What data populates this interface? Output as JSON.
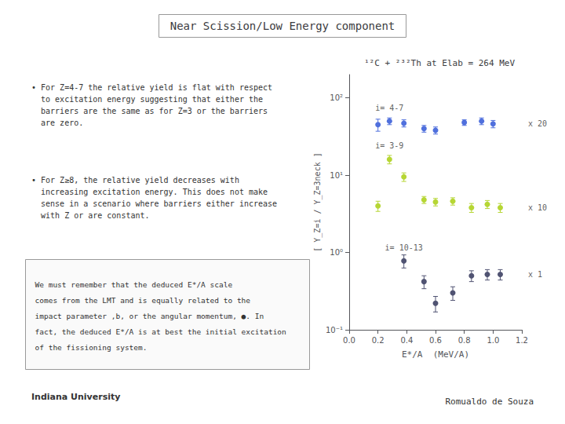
{
  "chart_data": {
    "type": "scatter",
    "title": "Near Scission/Low Energy component",
    "subtitle": "¹²C + ²³²Th at Elab = 264 MeV",
    "xlabel": "E*/A  (MeV/A)",
    "ylabel": "[ Y_Z=i / Y_Z=3neck ]",
    "log": "y",
    "grid": false,
    "marker": "circle",
    "xlim": [
      0.0,
      1.2
    ],
    "xticks": [
      {
        "value": 0,
        "label": "0.0"
      },
      0.2,
      0.4,
      0.6,
      0.8,
      {
        "value": 1,
        "label": "1.0"
      },
      1.2
    ],
    "ylim": [
      0.1,
      200
    ],
    "yticks": [
      {
        "value": 0.1,
        "label": "10⁻¹"
      },
      {
        "value": 1,
        "label": "10⁰"
      },
      {
        "value": 10,
        "label": "10¹"
      },
      {
        "value": 100,
        "label": "10²"
      }
    ],
    "series": [
      {
        "name": "i= 4-7",
        "annotation": "x 20",
        "x": [
          0.2,
          0.28,
          0.38,
          0.52,
          0.6,
          0.8,
          0.92,
          1.0
        ],
        "values": [
          45,
          50,
          47,
          40,
          38,
          48,
          50,
          46
        ],
        "yerr": [
          8,
          5,
          5,
          4,
          4,
          4,
          5,
          5
        ]
      },
      {
        "name": "i= 3-9",
        "annotation": "x 10",
        "x": [
          0.2,
          0.28,
          0.38,
          0.52,
          0.6,
          0.72,
          0.85,
          0.96,
          1.05
        ],
        "values": [
          4.0,
          16.0,
          9.5,
          4.8,
          4.5,
          4.6,
          3.8,
          4.2,
          3.8
        ],
        "yerr": [
          0.6,
          2.0,
          1.2,
          0.5,
          0.5,
          0.5,
          0.5,
          0.5,
          0.5
        ]
      },
      {
        "name": "i= 10-13",
        "annotation": "x 1",
        "x": [
          0.38,
          0.52,
          0.6,
          0.72,
          0.85,
          0.96,
          1.05
        ],
        "values": [
          0.78,
          0.42,
          0.22,
          0.3,
          0.5,
          0.52,
          0.52
        ],
        "yerr": [
          0.15,
          0.08,
          0.05,
          0.06,
          0.08,
          0.08,
          0.08
        ]
      }
    ],
    "annotations": [
      "• For Z=4-7 the relative yield is flat with respect\n  to excitation energy suggesting that either the\n  barriers are the same as for Z=3 or the barriers\n  are zero.",
      "• For Z≥8, the relative yield decreases with\n  increasing excitation energy. This does not make\n  sense in a scenario where barriers either increase\n  with Z or are constant.",
      "We must remember that the deduced E*/A scale\ncomes from the LMT and is equally related to the\nimpact parameter ,b, or the angular momentum, ●. In\nfact, the deduced E*/A is at best the initial excitation\nof the fissioning system.",
      "Indiana University",
      "Romualdo de Souza"
    ]
  }
}
